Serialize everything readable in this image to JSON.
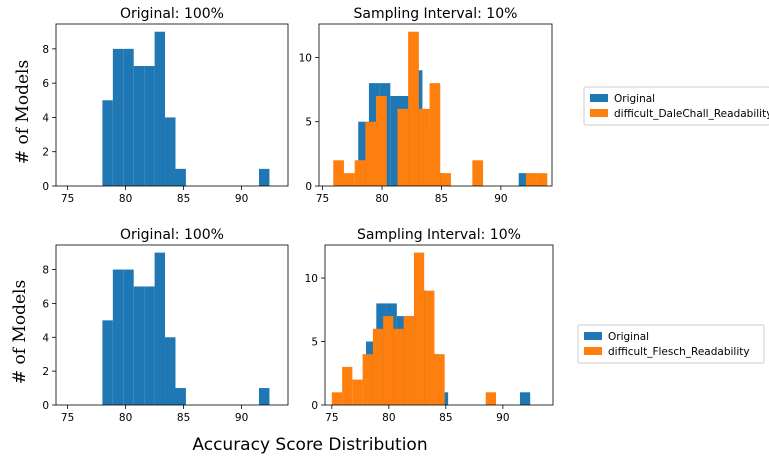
{
  "figure": {
    "ylabel_top": "# of Models",
    "ylabel_bottom": "# of Models",
    "xlabel": "Accuracy Score Distribution"
  },
  "colors": {
    "original": "#1f77b4",
    "difficult": "#ff7f0e"
  },
  "chart_data": [
    {
      "type": "bar",
      "title": "Original: 100%",
      "xlim": [
        74,
        94
      ],
      "ylim": [
        0,
        9.45
      ],
      "xticks": [
        75,
        80,
        85,
        90
      ],
      "yticks": [
        0,
        2,
        4,
        6,
        8
      ],
      "bin_width": 0.9,
      "series": [
        {
          "bin_starts": [
            78,
            78.9,
            79.8,
            80.7,
            81.6,
            82.5,
            83.4,
            84.3,
            91.5
          ],
          "values": [
            5,
            8,
            8,
            7,
            7,
            9,
            4,
            1,
            1
          ]
        }
      ]
    },
    {
      "type": "bar",
      "title": "Sampling Interval: 10%",
      "xlim": [
        74.7,
        94.3
      ],
      "ylim": [
        0,
        12.6
      ],
      "xticks": [
        75,
        80,
        85,
        90
      ],
      "yticks": [
        0,
        5,
        10
      ],
      "bin_width": 0.9,
      "series": [
        {
          "name": "Original",
          "bin_starts": [
            78,
            78.9,
            79.8,
            80.7,
            81.6,
            82.5,
            83.4,
            84.3,
            91.5
          ],
          "values": [
            5,
            8,
            8,
            7,
            7,
            9,
            4,
            1,
            1
          ]
        },
        {
          "name": "difficult_DaleChall_Readability",
          "bin_starts": [
            75.9,
            76.8,
            77.7,
            78.6,
            79.5,
            81.3,
            82.2,
            83.1,
            84.0,
            84.9,
            87.6,
            92.1,
            93.0
          ],
          "values": [
            2,
            1,
            2,
            5,
            7,
            6,
            12,
            6,
            8,
            1,
            2,
            1,
            1
          ]
        }
      ],
      "legend_position": "right"
    },
    {
      "type": "bar",
      "title": "Original: 100%",
      "xlim": [
        74,
        94
      ],
      "ylim": [
        0,
        9.45
      ],
      "xticks": [
        75,
        80,
        85,
        90
      ],
      "yticks": [
        0,
        2,
        4,
        6,
        8
      ],
      "bin_width": 0.9,
      "series": [
        {
          "bin_starts": [
            78,
            78.9,
            79.8,
            80.7,
            81.6,
            82.5,
            83.4,
            84.3,
            91.5
          ],
          "values": [
            5,
            8,
            8,
            7,
            7,
            9,
            4,
            1,
            1
          ]
        }
      ]
    },
    {
      "type": "bar",
      "title": "Sampling Interval: 10%",
      "xlim": [
        74.4,
        94.4
      ],
      "ylim": [
        0,
        12.6
      ],
      "xticks": [
        75,
        80,
        85,
        90
      ],
      "yticks": [
        0,
        5,
        10
      ],
      "bin_width": 0.9,
      "series": [
        {
          "name": "Original",
          "bin_starts": [
            78,
            78.9,
            79.8,
            80.7,
            81.6,
            82.5,
            83.4,
            84.3,
            91.5
          ],
          "values": [
            5,
            8,
            8,
            7,
            7,
            9,
            4,
            1,
            1
          ]
        },
        {
          "name": "difficult_Flesch_Readability",
          "bin_starts": [
            75.0,
            75.9,
            76.8,
            77.7,
            78.6,
            79.5,
            80.4,
            81.3,
            82.2,
            83.1,
            84.0,
            88.5
          ],
          "values": [
            1,
            3,
            2,
            4,
            6,
            7,
            6,
            7,
            12,
            9,
            4,
            1
          ]
        }
      ],
      "legend_position": "right"
    }
  ]
}
